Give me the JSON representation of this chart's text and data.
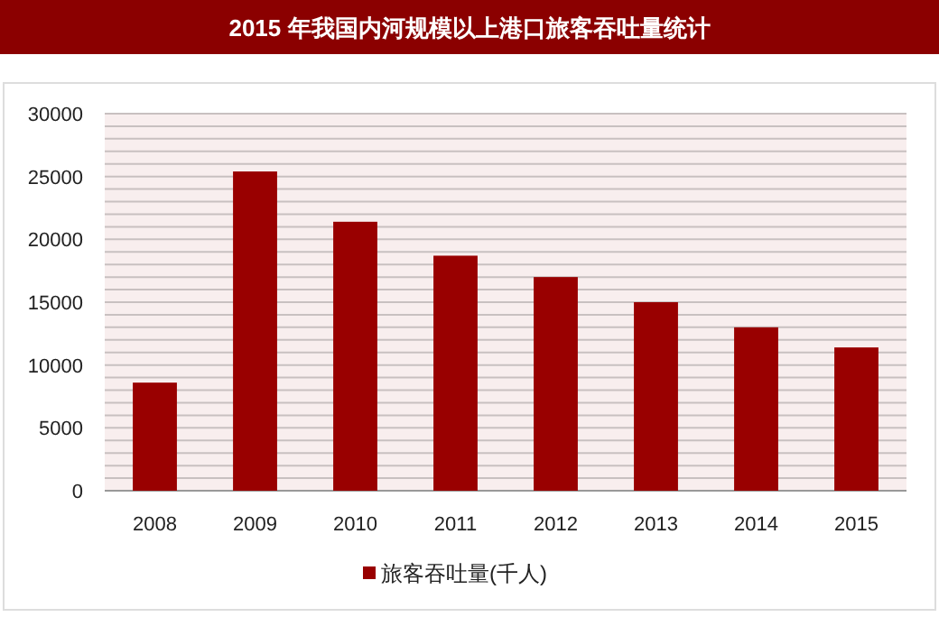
{
  "chart_data": {
    "type": "bar",
    "title": "2015 年我国内河规模以上港口旅客吞吐量统计",
    "categories": [
      "2008",
      "2009",
      "2010",
      "2011",
      "2012",
      "2013",
      "2014",
      "2015"
    ],
    "series": [
      {
        "name": "旅客吞吐量(千人)",
        "color": "#990000",
        "values": [
          8600,
          25400,
          21400,
          18700,
          17000,
          15000,
          13000,
          11400
        ]
      }
    ],
    "ylim": [
      0,
      30000
    ],
    "yticks": [
      0,
      {
        "value": 1000,
        "label": null
      },
      {
        "value": 2000,
        "label": null
      },
      {
        "value": 3000,
        "label": null
      },
      {
        "value": 4000,
        "label": null
      },
      5000,
      {
        "value": 6000,
        "label": null
      },
      {
        "value": 7000,
        "label": null
      },
      {
        "value": 8000,
        "label": null
      },
      {
        "value": 9000,
        "label": null
      },
      10000,
      {
        "value": 11000,
        "label": null
      },
      {
        "value": 12000,
        "label": null
      },
      {
        "value": 13000,
        "label": null
      },
      {
        "value": 14000,
        "label": null
      },
      15000,
      {
        "value": 16000,
        "label": null
      },
      {
        "value": 17000,
        "label": null
      },
      {
        "value": 18000,
        "label": null
      },
      {
        "value": 19000,
        "label": null
      },
      20000,
      {
        "value": 21000,
        "label": null
      },
      {
        "value": 22000,
        "label": null
      },
      {
        "value": 23000,
        "label": null
      },
      {
        "value": 24000,
        "label": null
      },
      25000,
      {
        "value": 26000,
        "label": null
      },
      {
        "value": 27000,
        "label": null
      },
      {
        "value": 28000,
        "label": null
      },
      {
        "value": 29000,
        "label": null
      },
      30000
    ],
    "grid": "y",
    "legend": "bottom"
  }
}
